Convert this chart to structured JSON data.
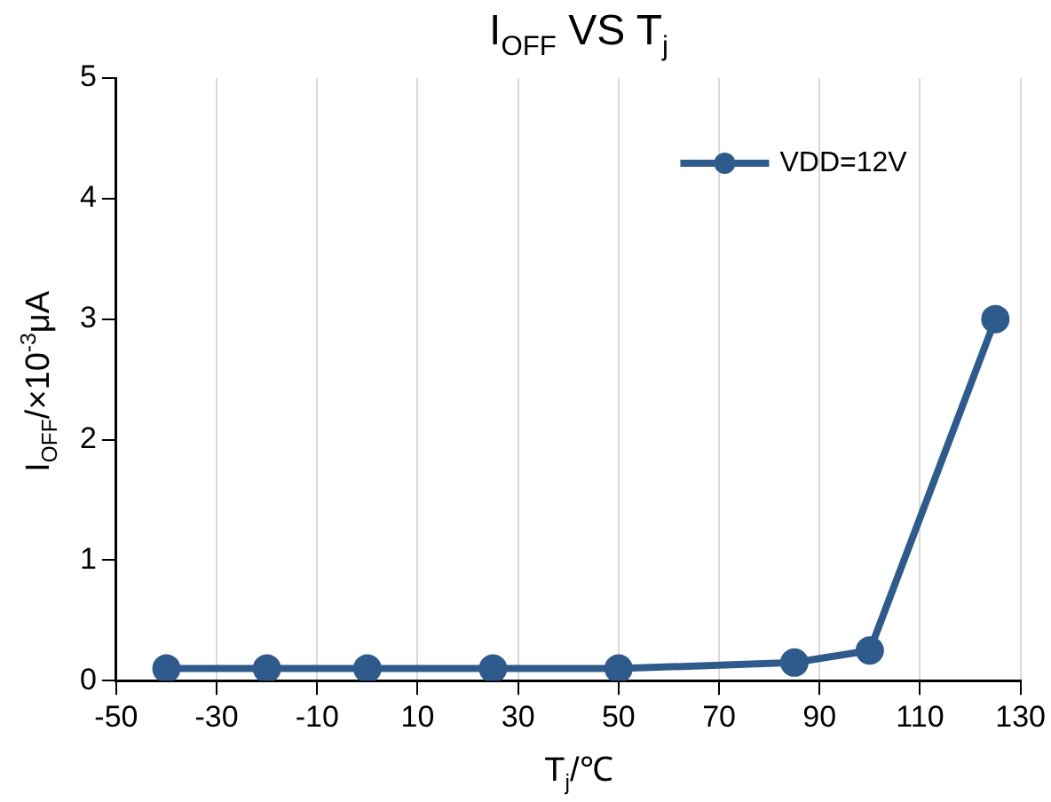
{
  "chart_data": {
    "type": "line",
    "title": "I$_{OFF}$ VS T$_{j}$",
    "xlabel": "T$_{j}$/℃",
    "ylabel": "I$_{OFF}$/×10$^{-3}$μA",
    "x": [
      -40,
      -20,
      0,
      25,
      50,
      85,
      100,
      125
    ],
    "series": [
      {
        "name": "VDD=12V",
        "color": "#2f5b8c",
        "values": [
          0.1,
          0.1,
          0.1,
          0.1,
          0.1,
          0.15,
          0.25,
          3.0
        ]
      }
    ],
    "xlim": [
      -50,
      130
    ],
    "xticks": [
      -50,
      -30,
      -10,
      10,
      30,
      50,
      70,
      90,
      110,
      130
    ],
    "ylim": [
      0,
      5
    ],
    "yticks": [
      0,
      1,
      2,
      3,
      4,
      5
    ],
    "grid": "x",
    "legend": "top right",
    "marker": "circle",
    "line_style": "solid"
  }
}
